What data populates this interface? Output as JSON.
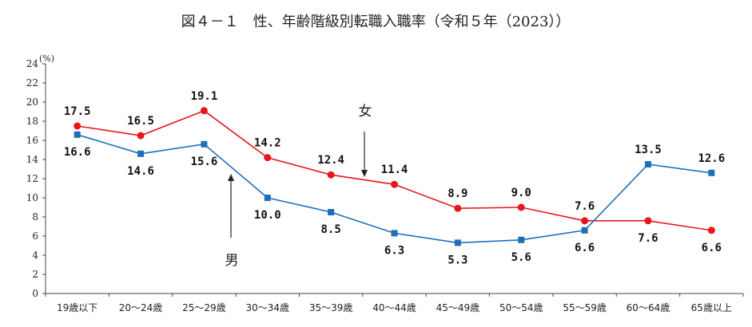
{
  "chart_data": {
    "type": "line",
    "title": "図４－１　性、年齢階級別転職入職率（令和５年（2023））",
    "ylabel": "(%)",
    "xlabel": "",
    "ylim": [
      0,
      24
    ],
    "y_ticks": [
      0,
      2,
      4,
      6,
      8,
      10,
      12,
      14,
      16,
      18,
      20,
      22,
      24
    ],
    "grid": false,
    "categories": [
      "19歳以下",
      "20～24歳",
      "25～29歳",
      "30～34歳",
      "35～39歳",
      "40～44歳",
      "45～49歳",
      "50～54歳",
      "55～59歳",
      "60～64歳",
      "65歳以上"
    ],
    "series": [
      {
        "name": "女",
        "color": "#e8161b",
        "marker": "circle",
        "values": [
          17.5,
          16.5,
          19.1,
          14.2,
          12.4,
          11.4,
          8.9,
          9.0,
          7.6,
          7.6,
          6.6
        ],
        "labels": [
          "17.5",
          "16.5",
          "19.1",
          "14.2",
          "12.4",
          "11.4",
          "8.9",
          "9.0",
          "7.6",
          "7.6",
          "6.6"
        ]
      },
      {
        "name": "男",
        "color": "#1f6fb8",
        "marker": "square",
        "values": [
          16.6,
          14.6,
          15.6,
          10.0,
          8.5,
          6.3,
          5.3,
          5.6,
          6.6,
          13.5,
          12.6
        ],
        "labels": [
          "16.6",
          "14.6",
          "15.6",
          "10.0",
          "8.5",
          "6.3",
          "5.3",
          "5.6",
          "6.6",
          "13.5",
          "12.6"
        ]
      }
    ]
  }
}
